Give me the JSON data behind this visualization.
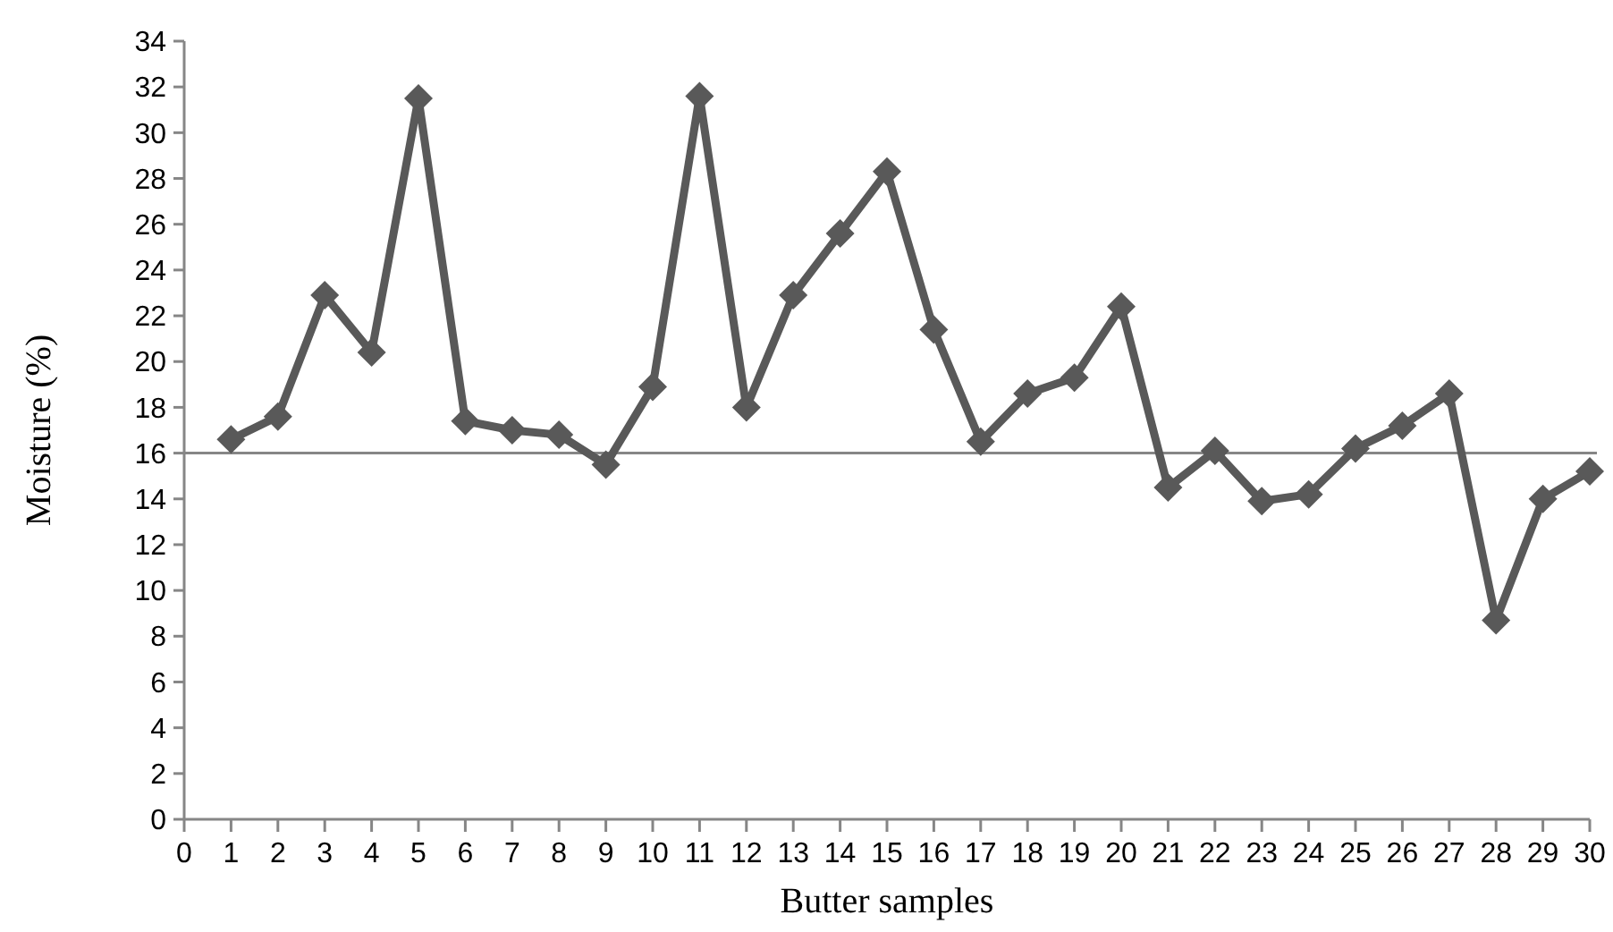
{
  "chart_data": {
    "type": "line",
    "xlabel": "Butter samples",
    "ylabel": "Moisture (%)",
    "x": [
      1,
      2,
      3,
      4,
      5,
      6,
      7,
      8,
      9,
      10,
      11,
      12,
      13,
      14,
      15,
      16,
      17,
      18,
      19,
      20,
      21,
      22,
      23,
      24,
      25,
      26,
      27,
      28,
      29,
      30
    ],
    "series": [
      {
        "color": "#595959",
        "values": [
          16.6,
          17.6,
          22.9,
          20.4,
          31.5,
          17.4,
          17.0,
          16.8,
          15.5,
          18.9,
          31.6,
          18.0,
          22.9,
          25.6,
          28.3,
          21.4,
          16.5,
          18.6,
          19.3,
          22.4,
          14.5,
          16.1,
          13.9,
          14.2,
          16.2,
          17.2,
          18.6,
          8.7,
          14.0,
          15.2
        ]
      }
    ],
    "xlim": [
      0,
      30
    ],
    "xticks": [
      0,
      1,
      2,
      3,
      4,
      5,
      6,
      7,
      8,
      9,
      10,
      11,
      12,
      13,
      14,
      15,
      16,
      17,
      18,
      19,
      20,
      21,
      22,
      23,
      24,
      25,
      26,
      27,
      28,
      29,
      30
    ],
    "ylim": [
      0,
      34
    ],
    "yticks": [
      0,
      2,
      4,
      6,
      8,
      10,
      12,
      14,
      16,
      18,
      20,
      22,
      24,
      26,
      28,
      30,
      32,
      34
    ],
    "ref_lines": [
      {
        "axis": "y",
        "value": 16
      }
    ],
    "grid": false,
    "marker": "diamond",
    "line_style": "solid"
  }
}
